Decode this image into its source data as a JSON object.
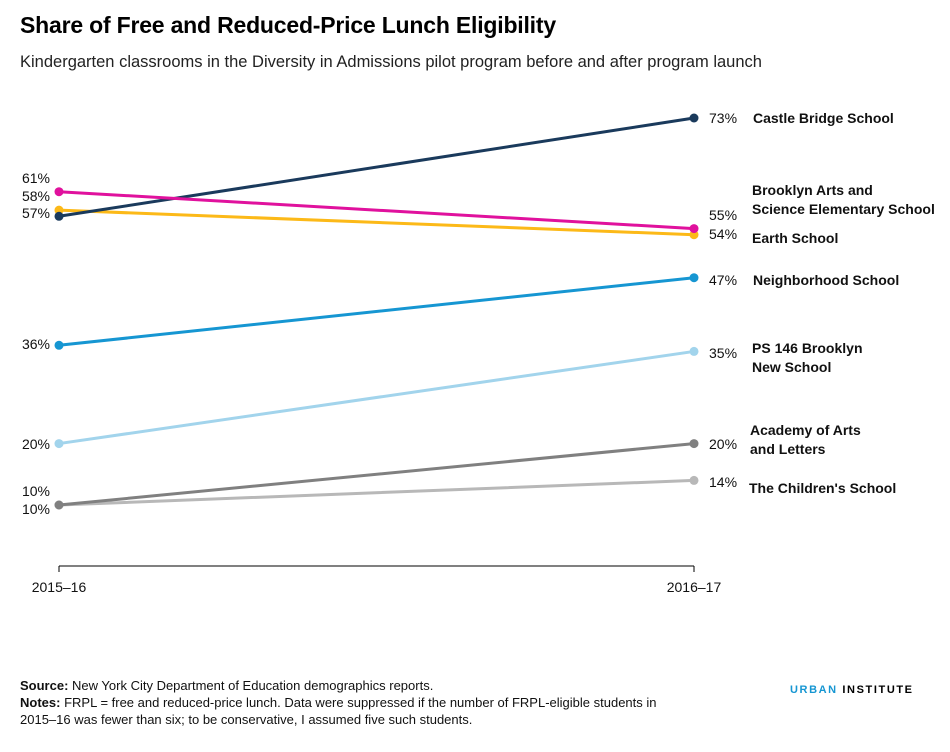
{
  "title": "Share of Free and Reduced-Price Lunch Eligibility",
  "subtitle": "Kindergarten classrooms in the Diversity in Admissions pilot program before and after program launch",
  "footer": {
    "source_label": "Source:",
    "source_text": "New York City Department of Education demographics reports.",
    "notes_label": "Notes:",
    "notes_text": "FRPL = free and reduced-price lunch. Data were suppressed if the number of FRPL-eligible students in 2015–16 was fewer than six; to be conservative, I assumed five such students."
  },
  "brand": {
    "part1": "URBAN",
    "part2": "INSTITUTE"
  },
  "chart_data": {
    "type": "line",
    "x": [
      "2015–16",
      "2016–17"
    ],
    "ylim": [
      0,
      80
    ],
    "grid": false,
    "legend": "direct labels at right",
    "series": [
      {
        "name": "Castle Bridge School",
        "values": [
          57,
          73
        ],
        "start_label": "57%",
        "end_label": "73%",
        "color": "#1a3a5c"
      },
      {
        "name": "Brooklyn Arts and Science Elementary School",
        "values": [
          61,
          55
        ],
        "start_label": "61%",
        "end_label": "55%",
        "color": "#e0119d"
      },
      {
        "name": "Earth School",
        "values": [
          58,
          54
        ],
        "start_label": "58%",
        "end_label": "54%",
        "color": "#fcb918"
      },
      {
        "name": "Neighborhood School",
        "values": [
          36,
          47
        ],
        "start_label": "36%",
        "end_label": "47%",
        "color": "#1696d2"
      },
      {
        "name": "PS 146 Brooklyn New School",
        "values": [
          20,
          35
        ],
        "start_label": "20%",
        "end_label": "35%",
        "color": "#a2d4ec"
      },
      {
        "name": "Academy of Arts and Letters",
        "values": [
          10,
          20
        ],
        "start_label": "10%",
        "end_label": "20%",
        "color": "#808080"
      },
      {
        "name": "The Children's School",
        "values": [
          10,
          14
        ],
        "start_label": "10%",
        "end_label": "14%",
        "color": "#b8b8b8"
      }
    ]
  }
}
